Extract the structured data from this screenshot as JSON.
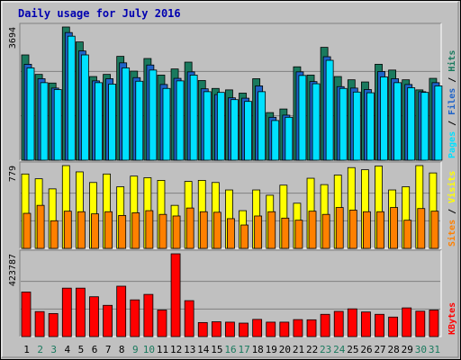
{
  "chart_data": {
    "type": "bar",
    "title": "Daily usage for July 2016",
    "categories": [
      "1",
      "2",
      "3",
      "4",
      "5",
      "6",
      "7",
      "8",
      "9",
      "10",
      "11",
      "12",
      "13",
      "14",
      "15",
      "16",
      "17",
      "18",
      "19",
      "20",
      "21",
      "22",
      "23",
      "24",
      "25",
      "26",
      "27",
      "28",
      "29",
      "30",
      "31"
    ],
    "weekend_days": [
      "2",
      "3",
      "9",
      "10",
      "16",
      "17",
      "23",
      "24",
      "30",
      "31"
    ],
    "panels": [
      {
        "id": "hits-files-pages",
        "ymax_label": "3694",
        "ymax": 3694,
        "right_label_parts": [
          "Pages",
          "Files",
          "Hits"
        ],
        "series": [
          {
            "name": "Hits",
            "color": "#1a7a5e",
            "values": [
              2920,
              2380,
              2140,
              3694,
              3280,
              2320,
              2380,
              2880,
              2470,
              2820,
              2360,
              2530,
              2720,
              2210,
              1990,
              1950,
              1860,
              2260,
              1320,
              1420,
              2590,
              2360,
              3130,
              2320,
              2230,
              2170,
              2660,
              2500,
              2230,
              1950,
              2270
            ]
          },
          {
            "name": "Files",
            "color": "#1e63c8",
            "values": [
              2660,
              2260,
              2000,
              3540,
              3030,
              2200,
              2260,
              2700,
              2290,
              2640,
              2100,
              2270,
              2450,
              1980,
              1820,
              1730,
              1720,
              2060,
              1190,
              1250,
              2450,
              2180,
              2870,
              2040,
              2000,
              1960,
              2460,
              2260,
              2100,
              1900,
              2150
            ]
          },
          {
            "name": "Pages",
            "color": "#00e0ff",
            "values": [
              2560,
              2150,
              1960,
              3440,
              2920,
              2150,
              2110,
              2560,
              2190,
              2500,
              1990,
              2200,
              2360,
              1900,
              1880,
              1680,
              1630,
              1900,
              1100,
              1190,
              2350,
              2120,
              2770,
              1990,
              1890,
              1870,
              2310,
              2150,
              2010,
              1880,
              2060
            ]
          }
        ]
      },
      {
        "id": "visits-sites",
        "ymax_label": "779",
        "ymax": 779,
        "right_label_parts": [
          "Sites",
          "Visits"
        ],
        "series": [
          {
            "name": "Visits",
            "color": "#ffff00",
            "values": [
              700,
              655,
              560,
              779,
              720,
              620,
              700,
              580,
              680,
              665,
              640,
              405,
              630,
              640,
              620,
              550,
              355,
              550,
              500,
              595,
              425,
              660,
              600,
              690,
              760,
              740,
              775,
              550,
              580,
              779,
              710
            ]
          },
          {
            "name": "Sites",
            "color": "#ff8000",
            "values": [
              330,
              405,
              260,
              350,
              345,
              325,
              345,
              310,
              335,
              355,
              320,
              305,
              380,
              345,
              340,
              280,
              220,
              305,
              345,
              285,
              265,
              350,
              320,
              385,
              360,
              345,
              345,
              385,
              265,
              375,
              350
            ]
          }
        ]
      },
      {
        "id": "kbytes",
        "ymax_label": "423787",
        "ymax": 423787,
        "right_label_parts": [
          "KBytes"
        ],
        "series": [
          {
            "name": "KBytes",
            "color": "#ff0000",
            "values": [
              228000,
              128000,
              118000,
              248000,
              248000,
              204000,
              160000,
              258000,
              188000,
              216000,
              136000,
              423787,
              184000,
              72000,
              76000,
              74000,
              69000,
              88000,
              74000,
              74000,
              87000,
              86000,
              114000,
              129000,
              142000,
              126000,
              114000,
              100000,
              147000,
              130000,
              136000
            ]
          }
        ]
      }
    ]
  }
}
